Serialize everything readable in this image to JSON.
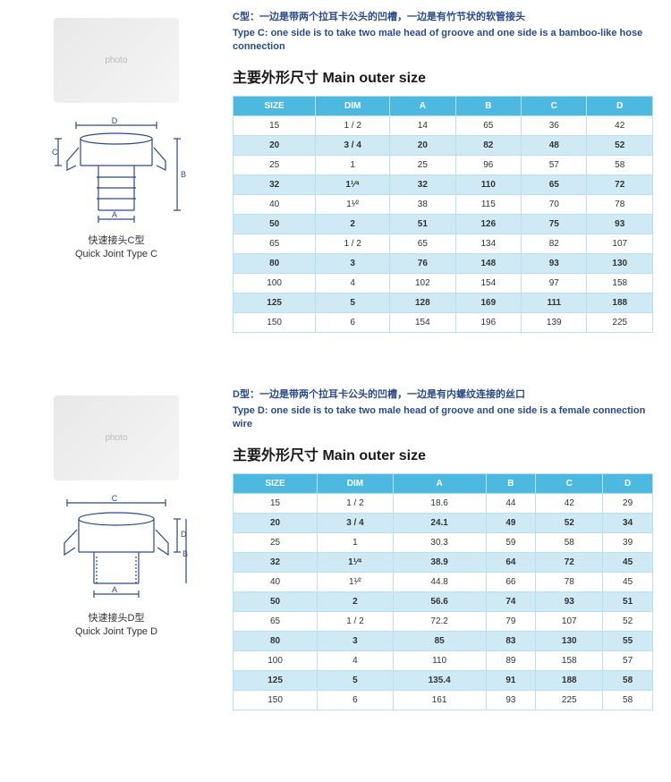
{
  "tableColors": {
    "headerBg": "#4db8e0",
    "headerText": "#ffffff",
    "altRowBg": "#cfeaf5",
    "normRowBg": "#ffffff",
    "borderColor": "#b8e0f0",
    "textColor": "#333333",
    "descColor": "#2a4a8a"
  },
  "sectionC": {
    "descCn": "C型：一边是带两个拉耳卡公头的凹槽，一边是有竹节状的软管接头",
    "descEn": "Type C: one side is to take two male head of groove and one side is a bamboo-like hose connection",
    "heading": "主要外形尺寸 Main outer size",
    "captionCn": "快速接头C型",
    "captionEn": "Quick Joint Type C",
    "columns": [
      "SIZE",
      "DIM",
      "A",
      "B",
      "C",
      "D"
    ],
    "rows": [
      {
        "alt": false,
        "cells": [
          "15",
          "1 / 2",
          "14",
          "65",
          "36",
          "42"
        ]
      },
      {
        "alt": true,
        "cells": [
          "20",
          "3 / 4",
          "20",
          "82",
          "48",
          "52"
        ]
      },
      {
        "alt": false,
        "cells": [
          "25",
          "1",
          "25",
          "96",
          "57",
          "58"
        ]
      },
      {
        "alt": true,
        "cells": [
          "32",
          "1¹⁄⁴",
          "32",
          "110",
          "65",
          "72"
        ]
      },
      {
        "alt": false,
        "cells": [
          "40",
          "1¹⁄²",
          "38",
          "115",
          "70",
          "78"
        ]
      },
      {
        "alt": true,
        "cells": [
          "50",
          "2",
          "51",
          "126",
          "75",
          "93"
        ]
      },
      {
        "alt": false,
        "cells": [
          "65",
          "1 / 2",
          "65",
          "134",
          "82",
          "107"
        ]
      },
      {
        "alt": true,
        "cells": [
          "80",
          "3",
          "76",
          "148",
          "93",
          "130"
        ]
      },
      {
        "alt": false,
        "cells": [
          "100",
          "4",
          "102",
          "154",
          "97",
          "158"
        ]
      },
      {
        "alt": true,
        "cells": [
          "125",
          "5",
          "128",
          "169",
          "111",
          "188"
        ]
      },
      {
        "alt": false,
        "cells": [
          "150",
          "6",
          "154",
          "196",
          "139",
          "225"
        ]
      }
    ]
  },
  "sectionD": {
    "descCn": "D型：一边是带两个拉耳卡公头的凹槽，一边是有内螺纹连接的丝口",
    "descEn": "Type D: one side is to take two male head of groove and one side is a female connection wire",
    "heading": "主要外形尺寸 Main outer size",
    "captionCn": "快速接头D型",
    "captionEn": "Quick Joint Type D",
    "columns": [
      "SIZE",
      "DIM",
      "A",
      "B",
      "C",
      "D"
    ],
    "rows": [
      {
        "alt": false,
        "cells": [
          "15",
          "1 / 2",
          "18.6",
          "44",
          "42",
          "29"
        ]
      },
      {
        "alt": true,
        "cells": [
          "20",
          "3 / 4",
          "24.1",
          "49",
          "52",
          "34"
        ]
      },
      {
        "alt": false,
        "cells": [
          "25",
          "1",
          "30.3",
          "59",
          "58",
          "39"
        ]
      },
      {
        "alt": true,
        "cells": [
          "32",
          "1¹⁄⁴",
          "38.9",
          "64",
          "72",
          "45"
        ]
      },
      {
        "alt": false,
        "cells": [
          "40",
          "1¹⁄²",
          "44.8",
          "66",
          "78",
          "45"
        ]
      },
      {
        "alt": true,
        "cells": [
          "50",
          "2",
          "56.6",
          "74",
          "93",
          "51"
        ]
      },
      {
        "alt": false,
        "cells": [
          "65",
          "1 / 2",
          "72.2",
          "79",
          "107",
          "52"
        ]
      },
      {
        "alt": true,
        "cells": [
          "80",
          "3",
          "85",
          "83",
          "130",
          "55"
        ]
      },
      {
        "alt": false,
        "cells": [
          "100",
          "4",
          "110",
          "89",
          "158",
          "57"
        ]
      },
      {
        "alt": true,
        "cells": [
          "125",
          "5",
          "135.4",
          "91",
          "188",
          "58"
        ]
      },
      {
        "alt": false,
        "cells": [
          "150",
          "6",
          "161",
          "93",
          "225",
          "58"
        ]
      }
    ]
  }
}
